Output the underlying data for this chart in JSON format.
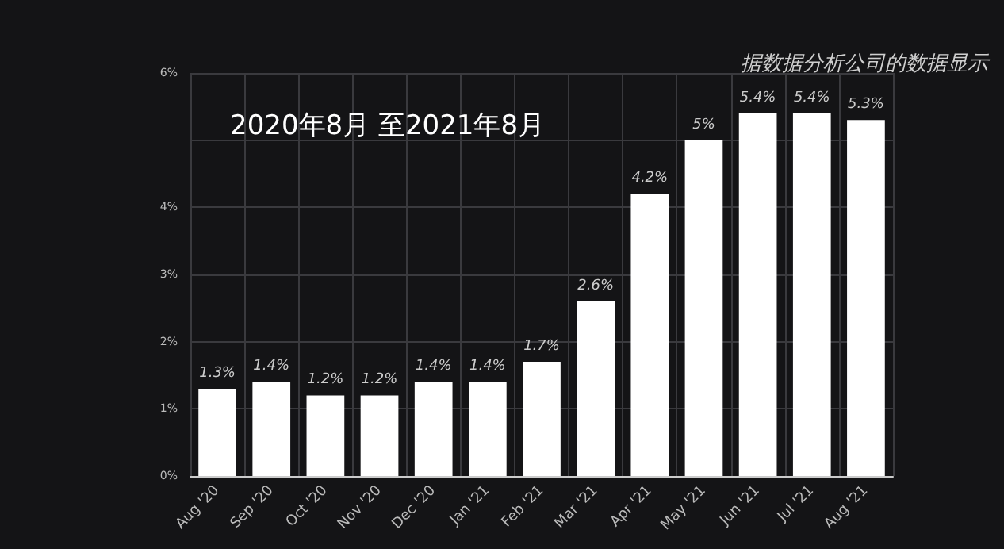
{
  "chart_data": {
    "type": "bar",
    "title": "2020年8月 至2021年8月",
    "annotations": [
      "据数据分析公司的数据显示"
    ],
    "categories": [
      "Aug '20",
      "Sep '20",
      "Oct '20",
      "Nov '20",
      "Dec '20",
      "Jan '21",
      "Feb '21",
      "Mar '21",
      "Apr '21",
      "May '21",
      "Jun '21",
      "Jul '21",
      "Aug '21"
    ],
    "values": [
      1.3,
      1.4,
      1.2,
      1.2,
      1.4,
      1.4,
      1.7,
      2.6,
      4.2,
      5,
      5.4,
      5.4,
      5.3
    ],
    "value_labels": [
      "1.3%",
      "1.4%",
      "1.2%",
      "1.2%",
      "1.4%",
      "1.4%",
      "1.7%",
      "2.6%",
      "4.2%",
      "5%",
      "5.4%",
      "5.4%",
      "5.3%"
    ],
    "color": "#ffffff",
    "ylim": [
      0,
      6
    ],
    "yticks": [
      {
        "value": 0,
        "label": "0%"
      },
      {
        "value": 1,
        "label": "1%"
      },
      {
        "value": 2,
        "label": "2%"
      },
      {
        "value": 3,
        "label": "3%"
      },
      {
        "value": 4,
        "label": "4%"
      },
      {
        "value": 5,
        "label": null
      },
      {
        "value": 6,
        "label": "6%"
      }
    ],
    "grid": true
  }
}
